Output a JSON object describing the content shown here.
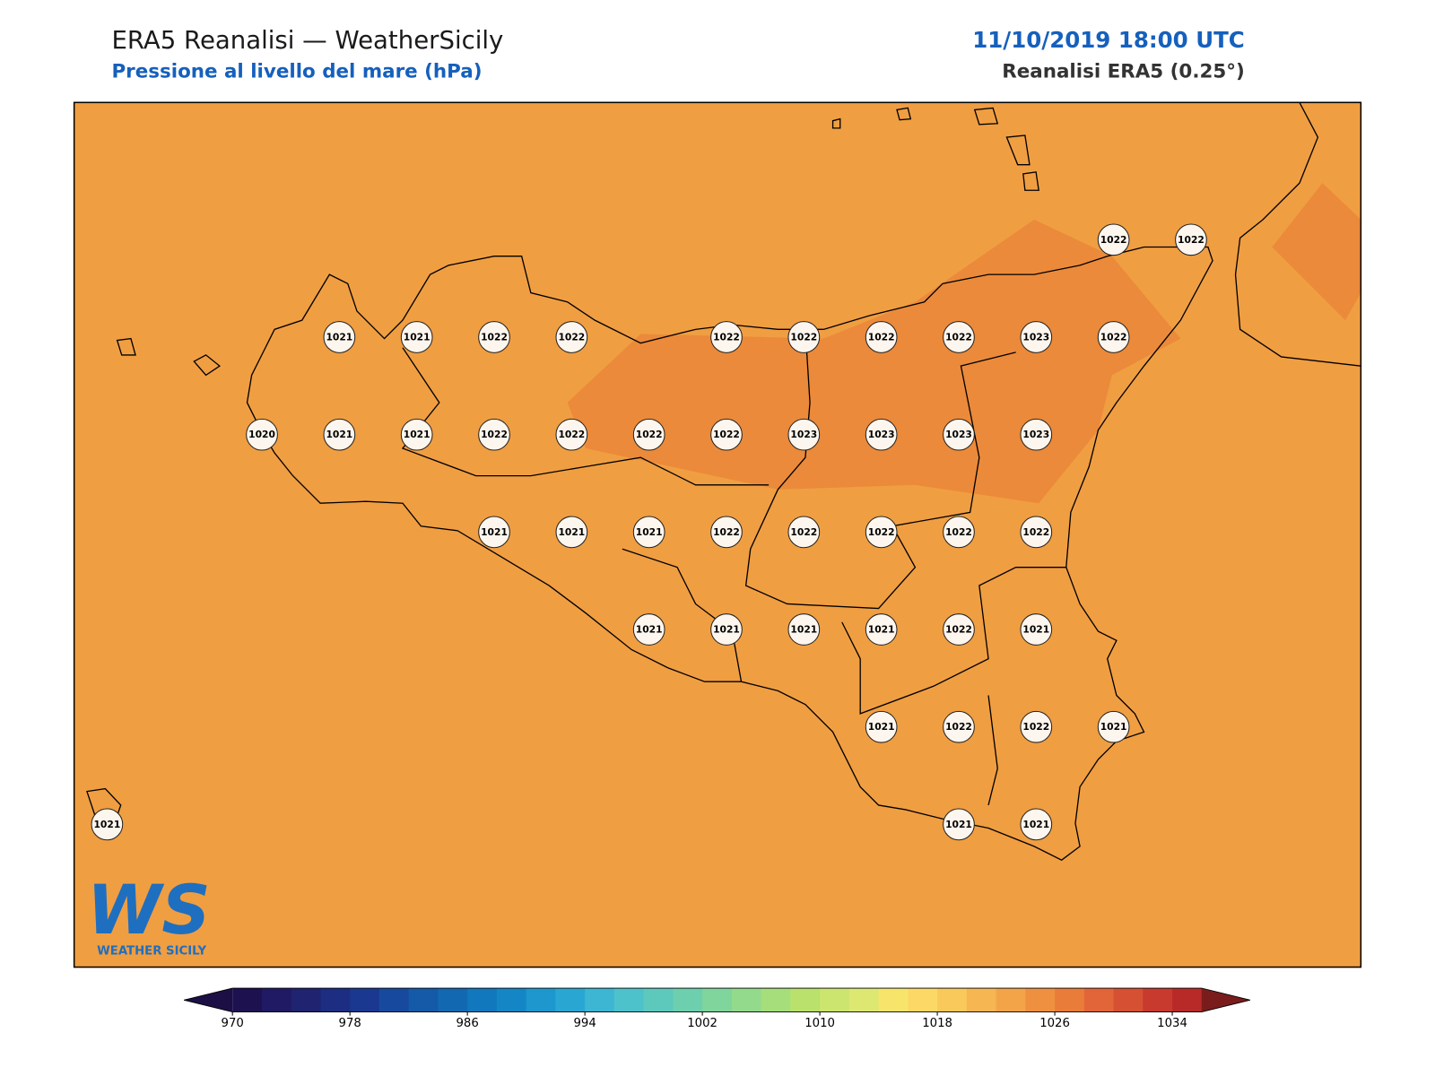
{
  "header": {
    "title": "ERA5 Reanalisi — WeatherSicily",
    "subtitle": "Pressione al livello del mare (hPa)",
    "date": "11/10/2019 18:00 UTC",
    "source": "Reanalisi ERA5 (0.25°)"
  },
  "map": {
    "background": "#f09e42",
    "high_color": "#eb8a3a",
    "grid": [
      [
        null,
        null,
        null,
        null,
        null,
        null,
        null,
        null,
        null,
        null,
        null,
        null,
        null,
        1022,
        1022
      ],
      [
        null,
        null,
        null,
        1021,
        1021,
        1022,
        1022,
        null,
        1022,
        1022,
        1022,
        1022,
        1023,
        1022,
        null
      ],
      [
        null,
        null,
        1020,
        1021,
        1021,
        1022,
        1022,
        1022,
        1022,
        1023,
        1023,
        1023,
        1023,
        null,
        null
      ],
      [
        null,
        null,
        null,
        null,
        null,
        1021,
        1021,
        1021,
        1022,
        1022,
        1022,
        1022,
        1022,
        null,
        null
      ],
      [
        null,
        null,
        null,
        null,
        null,
        null,
        null,
        1021,
        1021,
        1021,
        1021,
        1022,
        1021,
        null,
        null
      ],
      [
        null,
        null,
        null,
        null,
        null,
        null,
        null,
        null,
        null,
        null,
        1021,
        1022,
        1022,
        1021,
        null
      ],
      [
        1021,
        null,
        null,
        null,
        null,
        null,
        null,
        null,
        null,
        null,
        null,
        1021,
        1021,
        null,
        null
      ]
    ]
  },
  "colorbar": {
    "xlim": [
      970,
      1036
    ],
    "ticks": [
      970,
      978,
      986,
      994,
      1002,
      1010,
      1018,
      1026,
      1034
    ],
    "under": "#1c0f45",
    "over": "#7a1c1c",
    "colors": [
      "#1e1150",
      "#201a64",
      "#1f2370",
      "#1c2d82",
      "#1a3890",
      "#174a9e",
      "#145aa8",
      "#1269b2",
      "#1178bd",
      "#1486c5",
      "#1d97cd",
      "#2aa6d2",
      "#3cb6d2",
      "#4ec2cb",
      "#5dc9bd",
      "#6dcfad",
      "#80d59c",
      "#93da8c",
      "#a6de7c",
      "#b9e16c",
      "#cce56e",
      "#dde873",
      "#f6e46b",
      "#fcd966",
      "#f9c95c",
      "#f6b652",
      "#f3a449",
      "#ee9040",
      "#e97c38",
      "#e2653a",
      "#d65133",
      "#c83a2e",
      "#b82a28"
    ]
  },
  "logo": {
    "mark": "WS",
    "name": "WEATHER SICILY"
  }
}
